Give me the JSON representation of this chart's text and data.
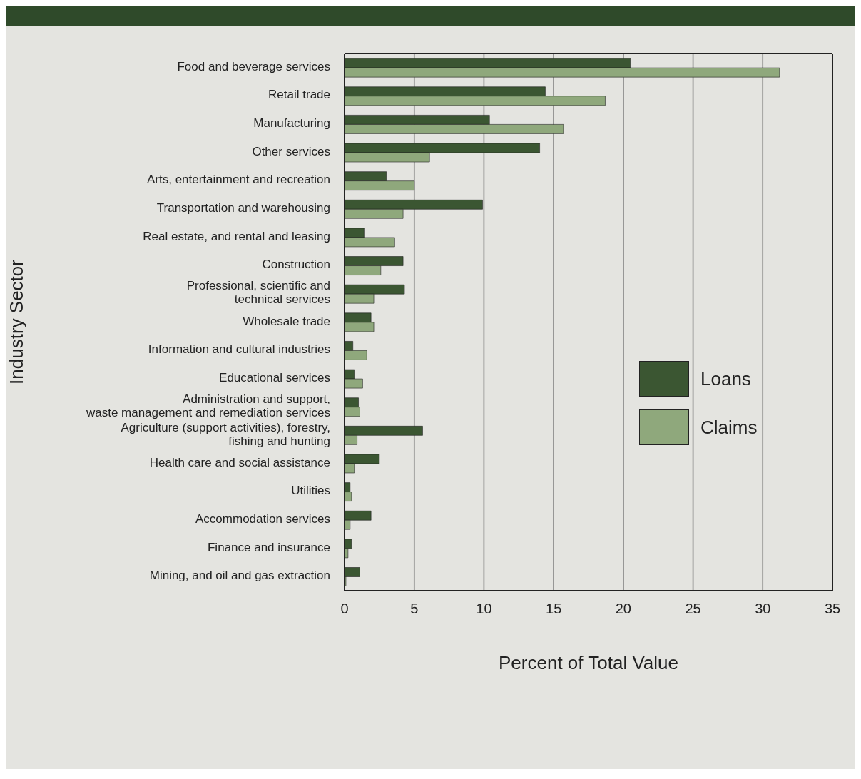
{
  "chart_data": {
    "type": "bar",
    "orientation": "horizontal",
    "xlabel": "Percent of Total Value",
    "ylabel": "Industry Sector",
    "categories": [
      "Food and beverage services",
      "Retail trade",
      "Manufacturing",
      "Other services",
      "Arts, entertainment and recreation",
      "Transportation and warehousing",
      "Real estate, and rental and leasing",
      "Construction",
      "Professional, scientific and\ntechnical services",
      "Wholesale trade",
      "Information and cultural industries",
      "Educational services",
      "Administration and support,\nwaste management and remediation services",
      "Agriculture (support activities), forestry,\nfishing and hunting",
      "Health care and social assistance",
      "Utilities",
      "Accommodation services",
      "Finance and insurance",
      "Mining, and oil and gas extraction"
    ],
    "series": [
      {
        "name": "Loans",
        "color": "#3b5632",
        "values": [
          20.5,
          14.4,
          10.4,
          14.0,
          3.0,
          9.9,
          1.4,
          4.2,
          4.3,
          1.9,
          0.6,
          0.7,
          1.0,
          5.6,
          2.5,
          0.4,
          1.9,
          0.5,
          1.1
        ]
      },
      {
        "name": "Claims",
        "color": "#8fa87c",
        "values": [
          31.2,
          18.7,
          15.7,
          6.1,
          5.0,
          4.2,
          3.6,
          2.6,
          2.1,
          2.1,
          1.6,
          1.3,
          1.1,
          0.9,
          0.7,
          0.5,
          0.4,
          0.25,
          0.1
        ]
      }
    ],
    "xlim": [
      0,
      35
    ],
    "xticks": [
      0,
      5,
      10,
      15,
      20,
      25,
      30,
      35
    ],
    "grid": "x",
    "legend": "right"
  }
}
